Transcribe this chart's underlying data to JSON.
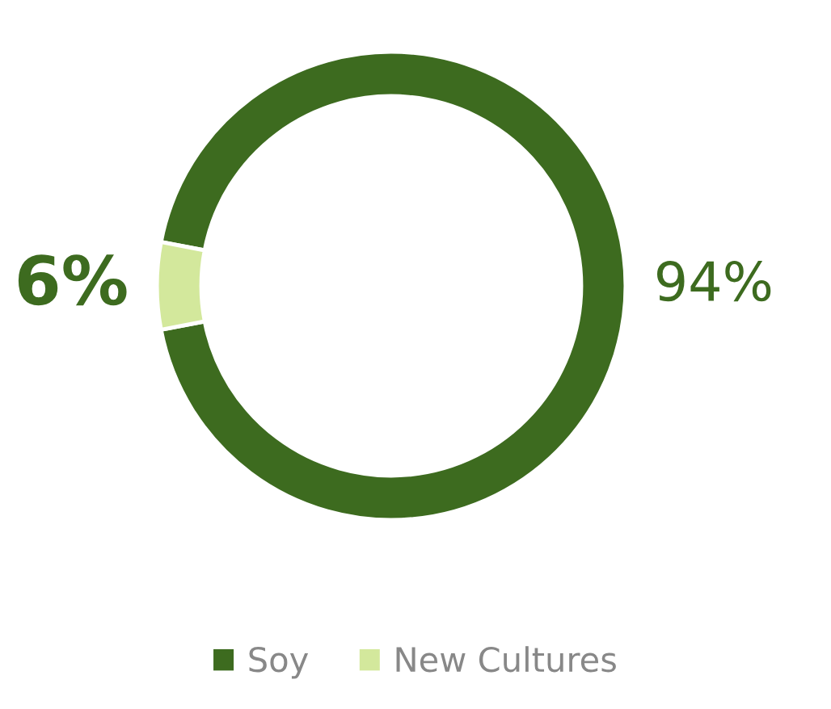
{
  "chart_data": {
    "type": "donut",
    "categories": [
      "Soy",
      "New Cultures"
    ],
    "values": [
      94,
      6
    ],
    "colors": [
      "#3d6b1f",
      "#d3e89c"
    ],
    "value_labels": [
      "94%",
      "6%"
    ],
    "legend": "bottom"
  }
}
